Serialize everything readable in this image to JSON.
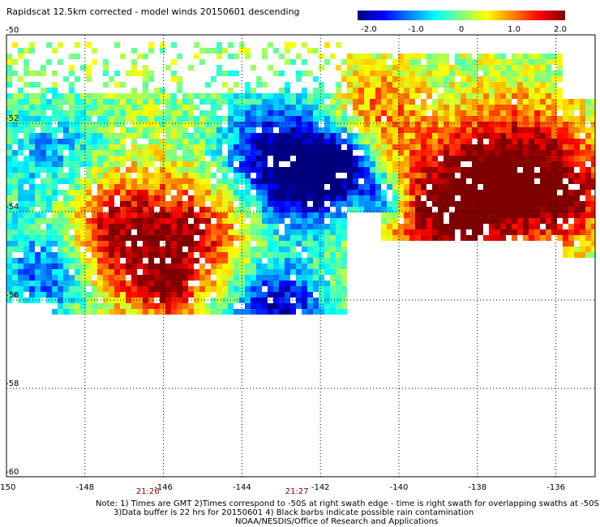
{
  "title": "Rapidscat 12.5km corrected - model winds 20150601 descending",
  "colorbar": {
    "labels": [
      "-2.0",
      "-1.0",
      "0",
      "1.0",
      "2.0"
    ],
    "min": -2.0,
    "max": 2.0,
    "colors": [
      "#00007f",
      "#0000ff",
      "#007fff",
      "#00ffff",
      "#7fff7f",
      "#ffff00",
      "#ff7f00",
      "#ff0000",
      "#7f0000"
    ]
  },
  "axes": {
    "lon_ticks": [
      "-150",
      "-148",
      "-146",
      "-144",
      "-142",
      "-140",
      "-138",
      "-136"
    ],
    "lat_ticks": [
      "-50",
      "-52",
      "-54",
      "-56",
      "-58",
      "-60"
    ],
    "lon_range": [
      -150,
      -135
    ],
    "lat_range": [
      -60,
      -50
    ],
    "grid": "dotted"
  },
  "times": [
    {
      "label": "21:26",
      "lon": -146.4
    },
    {
      "label": "21:27",
      "lon": -142.6
    }
  ],
  "notes": {
    "line1": "Note: 1) Times are GMT 2)Times correspond to -50S at right swath edge - time is right swath for overlapping swaths at -50S",
    "line2": "3)Data buffer is 22 hrs for 20150601 4) Black barbs indicate possible rain contamination",
    "line3": "NOAA/NESDIS/Office of Research and Applications"
  }
}
